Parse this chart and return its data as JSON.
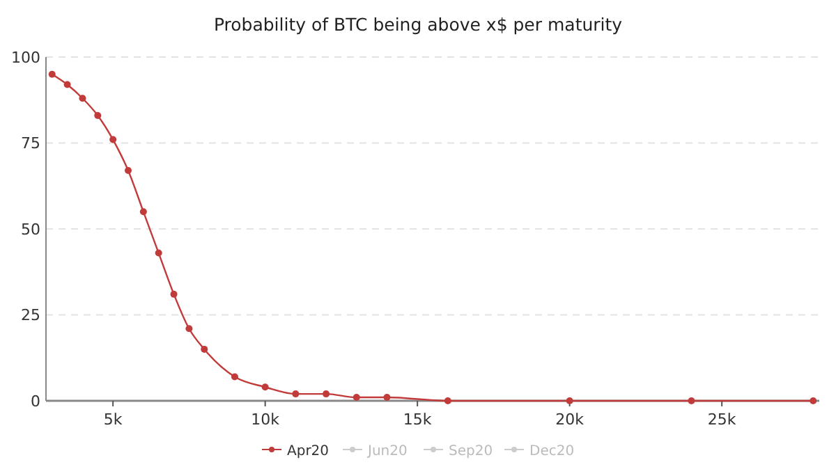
{
  "chart_data": {
    "type": "line",
    "title": "Probability of BTC being above x$ per maturity",
    "x": [
      3000,
      3500,
      4000,
      4500,
      5000,
      5500,
      6000,
      6500,
      7000,
      7500,
      8000,
      9000,
      10000,
      11000,
      12000,
      13000,
      14000,
      16000,
      20000,
      24000,
      28000
    ],
    "series": [
      {
        "name": "Apr20",
        "color": "#c23b3b",
        "values": [
          95,
          92,
          88,
          83,
          76,
          67,
          55,
          43,
          31,
          21,
          15,
          7,
          4,
          2,
          2,
          1,
          1,
          0,
          0,
          0,
          0
        ]
      },
      {
        "name": "Jun20",
        "color": "#cccccc",
        "values": [
          null,
          null,
          null,
          null,
          null,
          null,
          null,
          null,
          null,
          null,
          null,
          null,
          null,
          null,
          null,
          null,
          null,
          null,
          null,
          null,
          null
        ]
      },
      {
        "name": "Sep20",
        "color": "#cccccc",
        "values": [
          null,
          null,
          null,
          null,
          null,
          null,
          null,
          null,
          null,
          null,
          null,
          null,
          null,
          null,
          null,
          null,
          null,
          null,
          null,
          null,
          null
        ]
      },
      {
        "name": "Dec20",
        "color": "#cccccc",
        "values": [
          null,
          null,
          null,
          null,
          null,
          null,
          null,
          null,
          null,
          null,
          null,
          null,
          null,
          null,
          null,
          null,
          null,
          null,
          null,
          null,
          null
        ]
      }
    ],
    "xlim": [
      2800,
      28200
    ],
    "xticks": [
      {
        "value": 5000,
        "label": "5k"
      },
      {
        "value": 10000,
        "label": "10k"
      },
      {
        "value": 15000,
        "label": "15k"
      },
      {
        "value": 20000,
        "label": "20k"
      },
      {
        "value": 25000,
        "label": "25k"
      }
    ],
    "ylim": [
      0,
      100
    ],
    "yticks": [
      0,
      25,
      50,
      75,
      100
    ],
    "grid": "y",
    "legend": "bottom",
    "marker": "circle",
    "line_style": "solid"
  }
}
